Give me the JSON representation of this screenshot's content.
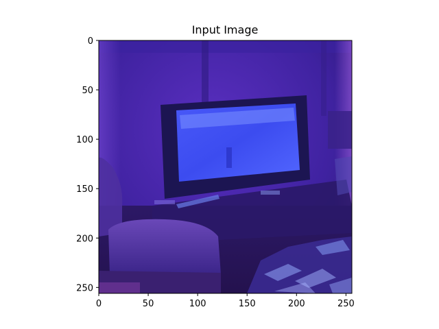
{
  "figure": {
    "title": "Input Image"
  },
  "image": {
    "subject": "dim room with a television, armchair and clutter, blue-violet cast",
    "palette": {
      "wall_dark": "#3a1f8c",
      "wall_light": "#6b3cc9",
      "tv_frame": "#1b1450",
      "tv_screen": "#3b4cf0",
      "tv_screen_light": "#6f86ff",
      "chair": "#5a3aa8",
      "floor": "#2a1660",
      "clutter": "#8a9cf0"
    }
  },
  "axes": {
    "x": {
      "range": [
        0,
        256
      ],
      "ticks": [
        0,
        50,
        100,
        150,
        200,
        250
      ],
      "tick_labels": [
        "0",
        "50",
        "100",
        "150",
        "200",
        "250"
      ]
    },
    "y": {
      "range": [
        0,
        256
      ],
      "inverted": true,
      "ticks": [
        0,
        50,
        100,
        150,
        200,
        250
      ],
      "tick_labels": [
        "0",
        "50",
        "100",
        "150",
        "200",
        "250"
      ]
    }
  }
}
